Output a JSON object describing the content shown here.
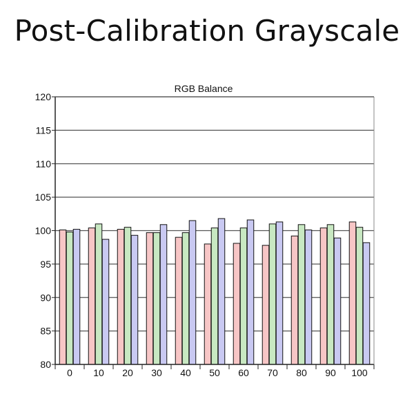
{
  "page": {
    "title": "Post-Calibration Grayscale"
  },
  "colors": {
    "red_fill": "#f7c6c6",
    "green_fill": "#c8e8c2",
    "blue_fill": "#c9c9f2",
    "bar_stroke": "#111111",
    "grid": "#555555",
    "axis": "#222222"
  },
  "chart_data": {
    "type": "bar",
    "title": "RGB Balance",
    "xlabel": "",
    "ylabel": "",
    "categories": [
      "0",
      "10",
      "20",
      "30",
      "40",
      "50",
      "60",
      "70",
      "80",
      "90",
      "100"
    ],
    "series": [
      {
        "values": [
          100.1,
          100.4,
          100.2,
          99.7,
          99.0,
          98.0,
          98.1,
          97.8,
          99.2,
          100.4,
          101.3
        ]
      },
      {
        "values": [
          99.8,
          101.0,
          100.5,
          99.7,
          99.7,
          100.4,
          100.4,
          101.0,
          100.9,
          100.9,
          100.5
        ]
      },
      {
        "values": [
          100.2,
          98.7,
          99.3,
          100.9,
          101.5,
          101.8,
          101.6,
          101.3,
          100.1,
          98.9,
          98.2
        ]
      }
    ],
    "ylim": [
      80,
      120
    ],
    "yticks": [
      80,
      85,
      90,
      95,
      100,
      105,
      110,
      115,
      120
    ],
    "grid": true,
    "legend": "none"
  }
}
